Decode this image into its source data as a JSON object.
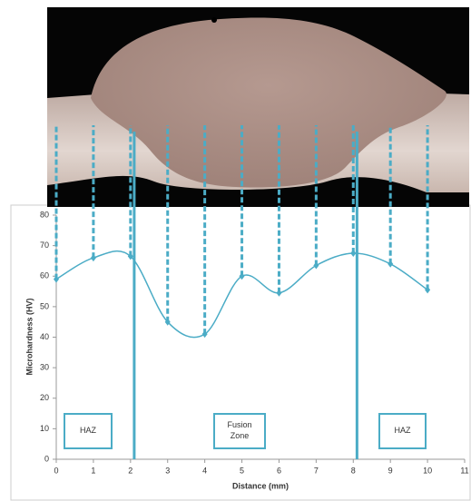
{
  "chart_data": {
    "type": "line",
    "x": [
      0,
      1,
      2,
      3,
      4,
      5,
      6,
      7,
      8,
      9,
      10
    ],
    "series": [
      {
        "color": "#4bacc6",
        "values": [
          59,
          66,
          66.5,
          45,
          41,
          60,
          54.5,
          63.5,
          67.5,
          64,
          55.5
        ]
      }
    ],
    "xlim": [
      0,
      11
    ],
    "xticks": [
      0,
      1,
      2,
      3,
      4,
      5,
      6,
      7,
      8,
      9,
      10,
      11
    ],
    "ylim": [
      0,
      80
    ],
    "yticks": [
      0,
      10,
      20,
      30,
      40,
      50,
      60,
      70,
      80
    ],
    "xlabel": "Distance (mm)",
    "ylabel": "Microhardness (HV)",
    "boundaries": [
      2.1,
      8.1
    ],
    "zones": [
      "HAZ",
      "Fusion Zone",
      "HAZ"
    ]
  }
}
